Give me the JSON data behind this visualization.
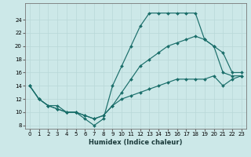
{
  "xlabel": "Humidex (Indice chaleur)",
  "background_color": "#cce8e8",
  "grid_color": "#b8d8d8",
  "line_color": "#1a6e6a",
  "xlim": [
    -0.5,
    23.5
  ],
  "ylim": [
    7.5,
    26.5
  ],
  "xticks": [
    0,
    1,
    2,
    3,
    4,
    5,
    6,
    7,
    8,
    9,
    10,
    11,
    12,
    13,
    14,
    15,
    16,
    17,
    18,
    19,
    20,
    21,
    22,
    23
  ],
  "yticks": [
    8,
    10,
    12,
    14,
    16,
    18,
    20,
    22,
    24
  ],
  "line1_x": [
    0,
    1,
    2,
    3,
    4,
    5,
    6,
    7,
    8,
    9,
    10,
    11,
    12,
    13,
    14,
    15,
    16,
    17,
    18,
    19,
    20,
    21,
    22,
    23
  ],
  "line1_y": [
    14,
    12,
    11,
    11,
    10,
    10,
    9,
    8,
    9,
    14,
    17,
    20,
    23,
    25,
    25,
    25,
    25,
    25,
    25,
    21,
    20,
    19,
    16,
    16
  ],
  "line2_x": [
    0,
    1,
    2,
    3,
    4,
    5,
    6,
    7,
    8,
    9,
    10,
    11,
    12,
    13,
    14,
    15,
    16,
    17,
    18,
    19,
    20,
    21,
    22,
    23
  ],
  "line2_y": [
    14,
    12,
    11,
    10.5,
    10,
    10,
    9.5,
    9,
    9.5,
    11,
    13,
    15,
    17,
    18,
    19,
    20,
    20.5,
    21,
    21.5,
    21,
    20,
    16,
    15.5,
    15.5
  ],
  "line3_x": [
    0,
    1,
    2,
    3,
    4,
    5,
    6,
    7,
    8,
    9,
    10,
    11,
    12,
    13,
    14,
    15,
    16,
    17,
    18,
    19,
    20,
    21,
    22,
    23
  ],
  "line3_y": [
    14,
    12,
    11,
    10.5,
    10,
    10,
    9.5,
    9,
    9.5,
    11,
    12,
    12.5,
    13,
    13.5,
    14,
    14.5,
    15,
    15,
    15,
    15,
    15.5,
    14,
    15,
    15.5
  ]
}
